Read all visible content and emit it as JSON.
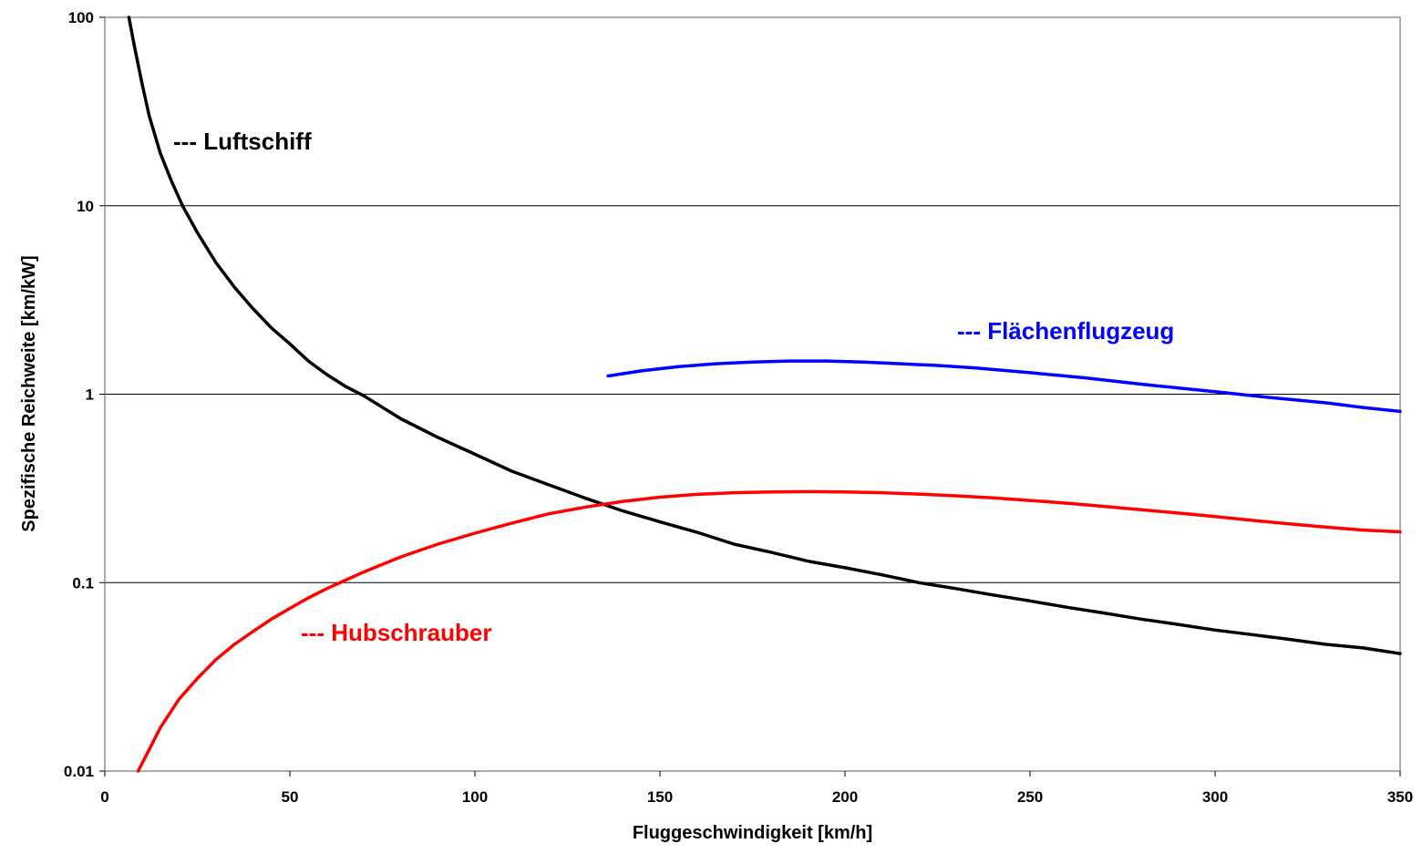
{
  "chart_data": {
    "type": "line",
    "title": "",
    "xlabel": "Fluggeschwindigkeit [km/h]",
    "ylabel": "Spezifische Reichweite [km/kW]",
    "xlim": [
      0,
      350
    ],
    "ylim": [
      0.01,
      100
    ],
    "yscale": "log",
    "grid": "horizontal major gridlines",
    "legend": "none (series labeled inline)",
    "x_ticks": [
      "0",
      "50",
      "100",
      "150",
      "200",
      "250",
      "300",
      "350"
    ],
    "y_ticks": [
      "0.01",
      "0.1",
      "1",
      "10",
      "100"
    ],
    "series": [
      {
        "name": "--- Luftschiff",
        "color": "#000000",
        "points": [
          [
            6.5,
            100
          ],
          [
            8,
            70
          ],
          [
            10,
            45
          ],
          [
            12,
            30
          ],
          [
            15,
            19
          ],
          [
            18,
            13.5
          ],
          [
            21,
            10
          ],
          [
            25,
            7.2
          ],
          [
            30,
            5
          ],
          [
            35,
            3.7
          ],
          [
            40,
            2.85
          ],
          [
            45,
            2.25
          ],
          [
            50,
            1.85
          ],
          [
            55,
            1.5
          ],
          [
            60,
            1.27
          ],
          [
            65,
            1.1
          ],
          [
            70,
            0.98
          ],
          [
            80,
            0.74
          ],
          [
            90,
            0.59
          ],
          [
            100,
            0.48
          ],
          [
            110,
            0.39
          ],
          [
            120,
            0.33
          ],
          [
            130,
            0.28
          ],
          [
            140,
            0.24
          ],
          [
            150,
            0.21
          ],
          [
            160,
            0.185
          ],
          [
            170,
            0.16
          ],
          [
            180,
            0.145
          ],
          [
            190,
            0.13
          ],
          [
            200,
            0.12
          ],
          [
            210,
            0.11
          ],
          [
            220,
            0.1
          ],
          [
            230,
            0.093
          ],
          [
            240,
            0.086
          ],
          [
            250,
            0.08
          ],
          [
            260,
            0.074
          ],
          [
            270,
            0.069
          ],
          [
            280,
            0.064
          ],
          [
            290,
            0.06
          ],
          [
            300,
            0.056
          ],
          [
            310,
            0.053
          ],
          [
            320,
            0.05
          ],
          [
            330,
            0.047
          ],
          [
            340,
            0.045
          ],
          [
            350,
            0.042
          ]
        ]
      },
      {
        "name": "--- Flächenflugzeug",
        "color": "#0000ff",
        "points": [
          [
            136,
            1.25
          ],
          [
            145,
            1.33
          ],
          [
            155,
            1.4
          ],
          [
            165,
            1.45
          ],
          [
            175,
            1.48
          ],
          [
            185,
            1.5
          ],
          [
            195,
            1.5
          ],
          [
            205,
            1.48
          ],
          [
            215,
            1.45
          ],
          [
            225,
            1.42
          ],
          [
            235,
            1.38
          ],
          [
            250,
            1.3
          ],
          [
            265,
            1.22
          ],
          [
            280,
            1.13
          ],
          [
            300,
            1.03
          ],
          [
            315,
            0.96
          ],
          [
            330,
            0.9
          ],
          [
            340,
            0.85
          ],
          [
            350,
            0.81
          ]
        ]
      },
      {
        "name": "--- Hubschrauber",
        "color": "#ff0000",
        "points": [
          [
            9,
            0.01
          ],
          [
            12,
            0.013
          ],
          [
            15,
            0.017
          ],
          [
            20,
            0.024
          ],
          [
            25,
            0.031
          ],
          [
            30,
            0.039
          ],
          [
            35,
            0.047
          ],
          [
            40,
            0.055
          ],
          [
            45,
            0.064
          ],
          [
            50,
            0.073
          ],
          [
            55,
            0.083
          ],
          [
            60,
            0.093
          ],
          [
            65,
            0.103
          ],
          [
            70,
            0.114
          ],
          [
            80,
            0.137
          ],
          [
            90,
            0.16
          ],
          [
            100,
            0.183
          ],
          [
            110,
            0.207
          ],
          [
            120,
            0.232
          ],
          [
            130,
            0.252
          ],
          [
            140,
            0.27
          ],
          [
            150,
            0.284
          ],
          [
            160,
            0.294
          ],
          [
            170,
            0.3
          ],
          [
            180,
            0.303
          ],
          [
            190,
            0.304
          ],
          [
            200,
            0.303
          ],
          [
            210,
            0.3
          ],
          [
            220,
            0.295
          ],
          [
            230,
            0.289
          ],
          [
            240,
            0.282
          ],
          [
            250,
            0.273
          ],
          [
            260,
            0.264
          ],
          [
            270,
            0.254
          ],
          [
            280,
            0.244
          ],
          [
            290,
            0.234
          ],
          [
            300,
            0.224
          ],
          [
            310,
            0.214
          ],
          [
            320,
            0.205
          ],
          [
            330,
            0.197
          ],
          [
            340,
            0.19
          ],
          [
            350,
            0.186
          ]
        ]
      }
    ]
  }
}
